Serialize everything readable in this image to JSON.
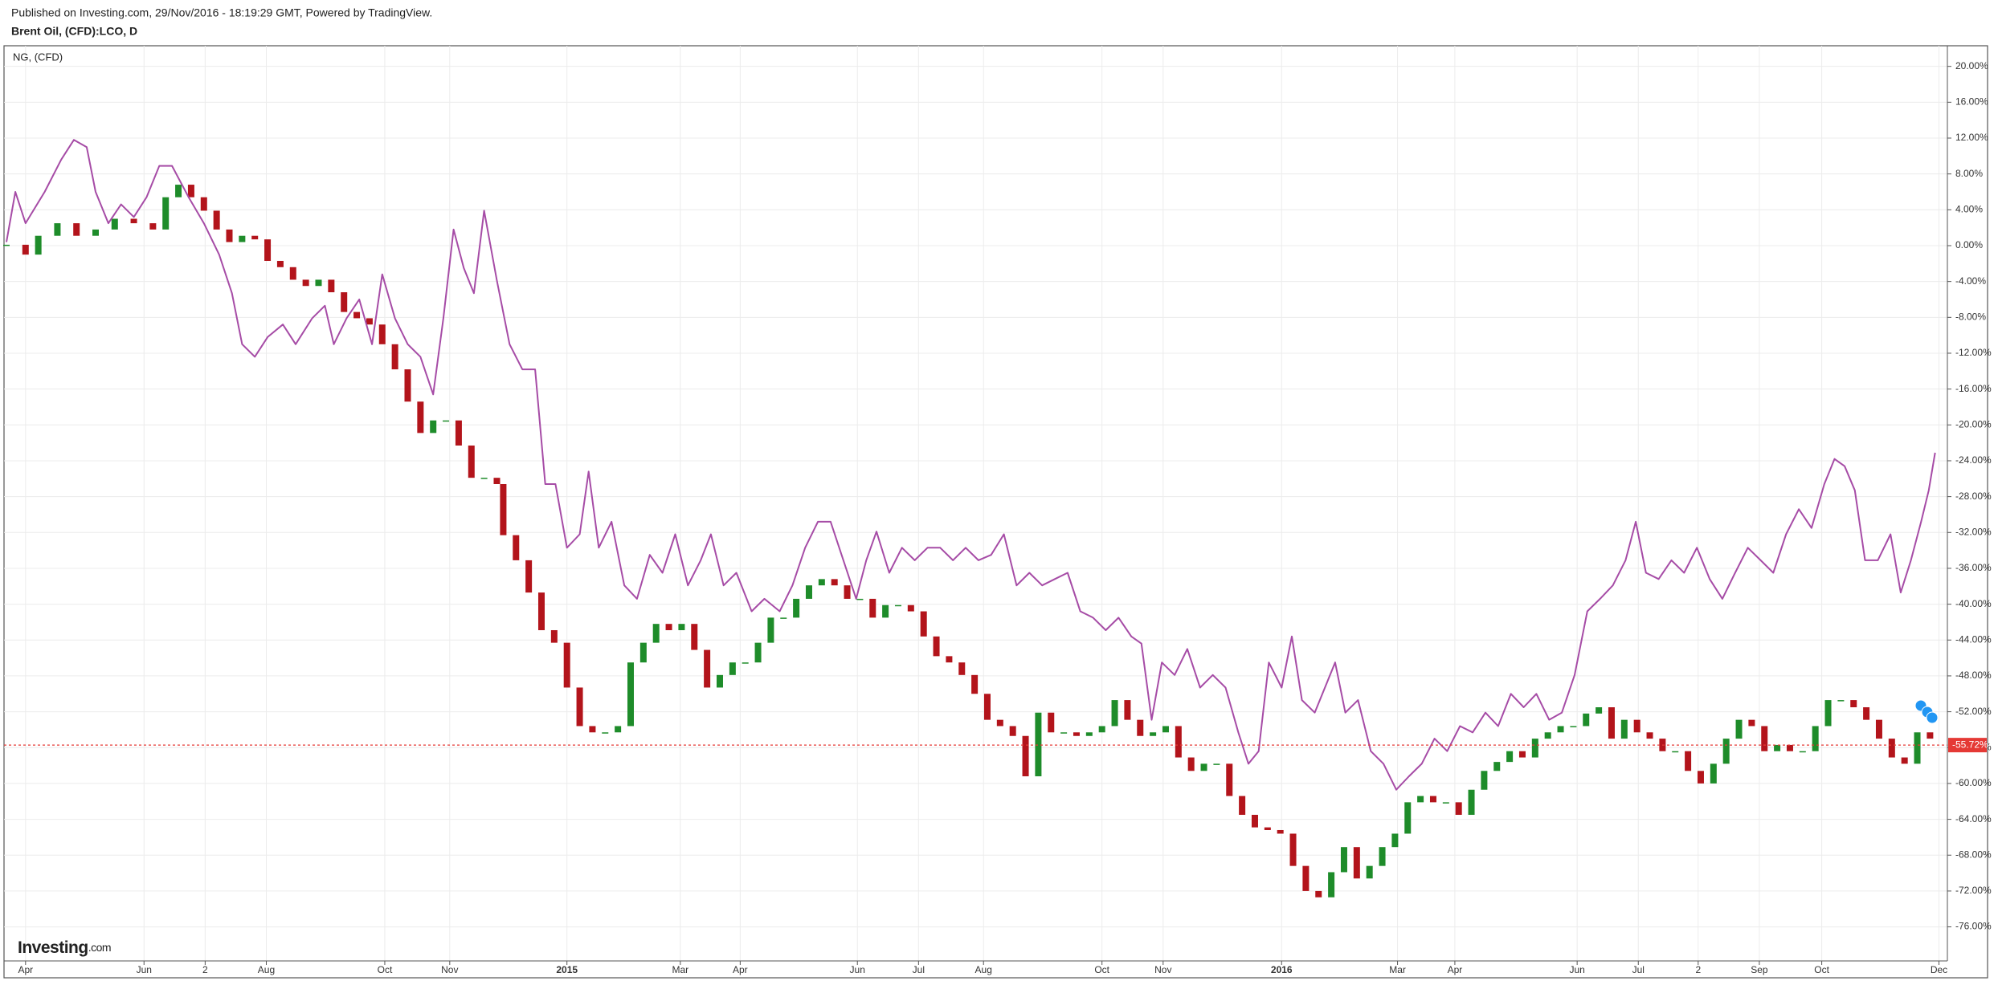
{
  "chart_data": {
    "type": "comparison",
    "header": "Published on Investing.com, 29/Nov/2016 - 18:19:29 GMT, Powered by TradingView.",
    "logo_name": "Investing",
    "logo_suffix": ".com",
    "grid": true,
    "xlim": [
      -1.5,
      150.8
    ],
    "ylim": [
      -79.8,
      22.3
    ],
    "xticks": [
      {
        "value": 0,
        "label": "Apr"
      },
      {
        "value": 9.3,
        "label": "Jun"
      },
      {
        "value": 14.1,
        "label": "2"
      },
      {
        "value": 18.9,
        "label": "Aug"
      },
      {
        "value": 28.2,
        "label": "Oct"
      },
      {
        "value": 33.3,
        "label": "Nov"
      },
      {
        "value": 42.5,
        "label": "2015"
      },
      {
        "value": 51.4,
        "label": "Mar"
      },
      {
        "value": 56.1,
        "label": "Apr"
      },
      {
        "value": 65.3,
        "label": "Jun"
      },
      {
        "value": 70.1,
        "label": "Jul"
      },
      {
        "value": 75.2,
        "label": "Aug"
      },
      {
        "value": 84.5,
        "label": "Oct"
      },
      {
        "value": 89.3,
        "label": "Nov"
      },
      {
        "value": 98.6,
        "label": "2016"
      },
      {
        "value": 107.7,
        "label": "Mar"
      },
      {
        "value": 112.2,
        "label": "Apr"
      },
      {
        "value": 121.8,
        "label": "Jun"
      },
      {
        "value": 126.6,
        "label": "Jul"
      },
      {
        "value": 131.3,
        "label": "2"
      },
      {
        "value": 136.1,
        "label": "Sep"
      },
      {
        "value": 141.0,
        "label": "Oct"
      },
      {
        "value": 150.2,
        "label": "Dec"
      }
    ],
    "yticks": [
      {
        "value": 20,
        "label": "20.00%"
      },
      {
        "value": 16,
        "label": "16.00%"
      },
      {
        "value": 12,
        "label": "12.00%"
      },
      {
        "value": 8,
        "label": "8.00%"
      },
      {
        "value": 4,
        "label": "4.00%"
      },
      {
        "value": 0,
        "label": "0.00%"
      },
      {
        "value": -4,
        "label": "-4.00%"
      },
      {
        "value": -8,
        "label": "-8.00%"
      },
      {
        "value": -12,
        "label": "-12.00%"
      },
      {
        "value": -16,
        "label": "-16.00%"
      },
      {
        "value": -20,
        "label": "-20.00%"
      },
      {
        "value": -24,
        "label": "-24.00%"
      },
      {
        "value": -28,
        "label": "-28.00%"
      },
      {
        "value": -32,
        "label": "-32.00%"
      },
      {
        "value": -36,
        "label": "-36.00%"
      },
      {
        "value": -40,
        "label": "-40.00%"
      },
      {
        "value": -44,
        "label": "-44.00%"
      },
      {
        "value": -48,
        "label": "-48.00%"
      },
      {
        "value": -52,
        "label": "-52.00%"
      },
      {
        "value": -56,
        "label": "-56.00%"
      },
      {
        "value": -60,
        "label": "-60.00%"
      },
      {
        "value": -64,
        "label": "-64.00%"
      },
      {
        "value": -68,
        "label": "-68.00%"
      },
      {
        "value": -72,
        "label": "-72.00%"
      },
      {
        "value": -76,
        "label": "-76.00%"
      }
    ],
    "last_value": {
      "value": -55.72,
      "label": "-55.72%",
      "color": "#e53935"
    },
    "series": [
      {
        "name": "Brent Oil, (CFD):LCO, D",
        "type": "candlestick",
        "up_color": "#1e8c2a",
        "down_color": "#b3141b",
        "x": [
          -1.5,
          0,
          1,
          2.5,
          4,
          5.5,
          7,
          8.5,
          10,
          11,
          12,
          13,
          14,
          15,
          16,
          17,
          18,
          19,
          20,
          21,
          22,
          23,
          24,
          25,
          26,
          27,
          28,
          29,
          30,
          31,
          32,
          33,
          34,
          35,
          36,
          37,
          37.5,
          38.5,
          39.5,
          40.5,
          41.5,
          42.5,
          43.5,
          44.5,
          45.5,
          46.5,
          47.5,
          48.5,
          49.5,
          50.5,
          51.5,
          52.5,
          53.5,
          54.5,
          55.5,
          56.5,
          57.5,
          58.5,
          59.5,
          60.5,
          61.5,
          62.5,
          63.5,
          64.5,
          65.5,
          66.5,
          67.5,
          68.5,
          69.5,
          70.5,
          71.5,
          72.5,
          73.5,
          74.5,
          75.5,
          76.5,
          77.5,
          78.5,
          79.5,
          80.5,
          81.5,
          82.5,
          83.5,
          84.5,
          85.5,
          86.5,
          87.5,
          88.5,
          89.5,
          90.5,
          91.5,
          92.5,
          93.5,
          94.5,
          95.5,
          96.5,
          97.5,
          98.5,
          99.5,
          100.5,
          101.5,
          102.5,
          103.5,
          104.5,
          105.5,
          106.5,
          107.5,
          108.5,
          109.5,
          110.5,
          111.5,
          112.5,
          113.5,
          114.5,
          115.5,
          116.5,
          117.5,
          118.5,
          119.5,
          120.5,
          121.5,
          122.5,
          123.5,
          124.5,
          125.5,
          126.5,
          127.5,
          128.5,
          129.5,
          130.5,
          131.5,
          132.5,
          133.5,
          134.5,
          135.5,
          136.5,
          137.5,
          138.5,
          139.5,
          140.5,
          141.5,
          142.5,
          143.5,
          144.5,
          145.5,
          146.5,
          147.5,
          148.5,
          149.5
        ],
        "open": [
          0,
          0.1,
          -1.0,
          1.1,
          2.5,
          1.1,
          1.8,
          3.0,
          2.5,
          1.8,
          5.4,
          6.8,
          5.4,
          3.9,
          1.8,
          0.4,
          1.1,
          0.7,
          -1.7,
          -2.4,
          -3.8,
          -4.5,
          -3.8,
          -5.2,
          -7.4,
          -8.1,
          -8.8,
          -11.0,
          -13.8,
          -17.4,
          -20.9,
          -19.5,
          -19.5,
          -22.3,
          -25.9,
          -25.9,
          -26.6,
          -32.3,
          -35.1,
          -38.7,
          -42.9,
          -44.3,
          -49.3,
          -53.6,
          -54.3,
          -54.3,
          -53.6,
          -46.5,
          -44.3,
          -42.2,
          -42.9,
          -42.2,
          -45.1,
          -49.3,
          -47.9,
          -46.5,
          -46.5,
          -44.3,
          -41.5,
          -41.5,
          -39.4,
          -37.9,
          -37.2,
          -37.9,
          -39.4,
          -39.4,
          -41.5,
          -40.1,
          -40.1,
          -40.8,
          -43.6,
          -45.8,
          -46.5,
          -47.9,
          -50.0,
          -52.9,
          -53.6,
          -54.7,
          -59.2,
          -52.1,
          -54.3,
          -54.3,
          -54.7,
          -54.3,
          -53.6,
          -50.7,
          -52.9,
          -54.7,
          -54.3,
          -53.6,
          -57.1,
          -58.6,
          -57.8,
          -57.8,
          -61.4,
          -63.5,
          -64.9,
          -65.2,
          -65.6,
          -69.2,
          -72.0,
          -72.7,
          -69.9,
          -67.1,
          -70.6,
          -69.2,
          -67.1,
          -65.6,
          -62.1,
          -61.4,
          -62.1,
          -62.1,
          -63.5,
          -60.7,
          -58.6,
          -57.6,
          -56.4,
          -57.1,
          -55.0,
          -54.3,
          -53.6,
          -53.6,
          -52.2,
          -51.5,
          -55.0,
          -52.9,
          -54.3,
          -55.0,
          -56.4,
          -56.4,
          -58.6,
          -60.0,
          -57.8,
          -55.0,
          -52.9,
          -53.6,
          -56.4,
          -55.7,
          -56.4,
          -56.4,
          -53.6,
          -50.7,
          -50.7,
          -51.5,
          -52.9,
          -55.0,
          -57.1,
          -57.8,
          -54.3
        ],
        "close": [
          0.1,
          -1.0,
          1.1,
          2.5,
          1.1,
          1.8,
          3.0,
          2.5,
          1.8,
          5.4,
          6.8,
          5.4,
          3.9,
          1.8,
          0.4,
          1.1,
          0.7,
          -1.7,
          -2.4,
          -3.8,
          -4.5,
          -3.8,
          -5.2,
          -7.4,
          -8.1,
          -8.8,
          -11.0,
          -13.8,
          -17.4,
          -20.9,
          -19.5,
          -19.5,
          -22.3,
          -25.9,
          -25.9,
          -26.6,
          -32.3,
          -35.1,
          -38.7,
          -42.9,
          -44.3,
          -49.3,
          -53.6,
          -54.3,
          -54.3,
          -53.6,
          -46.5,
          -44.3,
          -42.2,
          -42.9,
          -42.2,
          -45.1,
          -49.3,
          -47.9,
          -46.5,
          -46.5,
          -44.3,
          -41.5,
          -41.5,
          -39.4,
          -37.9,
          -37.2,
          -37.9,
          -39.4,
          -39.4,
          -41.5,
          -40.1,
          -40.1,
          -40.8,
          -43.6,
          -45.8,
          -46.5,
          -47.9,
          -50.0,
          -52.9,
          -53.6,
          -54.7,
          -59.2,
          -52.1,
          -54.3,
          -54.3,
          -54.7,
          -54.3,
          -53.6,
          -50.7,
          -52.9,
          -54.7,
          -54.3,
          -53.6,
          -57.1,
          -58.6,
          -57.8,
          -57.8,
          -61.4,
          -63.5,
          -64.9,
          -65.2,
          -65.6,
          -69.2,
          -72.0,
          -72.7,
          -69.9,
          -67.1,
          -70.6,
          -69.2,
          -67.1,
          -65.6,
          -62.1,
          -61.4,
          -62.1,
          -62.1,
          -63.5,
          -60.7,
          -58.6,
          -57.6,
          -56.4,
          -57.1,
          -55.0,
          -54.3,
          -53.6,
          -53.6,
          -52.2,
          -51.5,
          -55.0,
          -52.9,
          -54.3,
          -55.0,
          -56.4,
          -56.4,
          -58.6,
          -60.0,
          -57.8,
          -55.0,
          -52.9,
          -53.6,
          -56.4,
          -55.7,
          -56.4,
          -56.4,
          -53.6,
          -50.7,
          -50.7,
          -51.5,
          -52.9,
          -55.0,
          -57.1,
          -57.8,
          -54.3,
          -55.0
        ]
      },
      {
        "name": "NG,  (CFD)",
        "type": "line",
        "color": "#a64ca6",
        "x": [
          -1.5,
          -0.8,
          0,
          1.5,
          2.8,
          3.8,
          4.8,
          5.5,
          6.5,
          7.5,
          8.5,
          9.5,
          10.5,
          11.5,
          12.8,
          14,
          15.2,
          16.2,
          17,
          18,
          19,
          20.2,
          21.2,
          22.5,
          23.5,
          24.2,
          25.2,
          26.2,
          27.2,
          28,
          29,
          30,
          31,
          32,
          32.8,
          33.6,
          34.4,
          35.2,
          36,
          37,
          38,
          39,
          40,
          40.8,
          41.6,
          42.5,
          43.5,
          44.2,
          45,
          46,
          47,
          48,
          49,
          50,
          51,
          52,
          53,
          53.8,
          54.8,
          55.8,
          57,
          58,
          59.2,
          60.2,
          61.2,
          62.2,
          63.2,
          64.2,
          65.2,
          66,
          66.8,
          67.8,
          68.8,
          69.8,
          70.8,
          71.8,
          72.8,
          73.8,
          74.8,
          75.8,
          76.8,
          77.8,
          78.8,
          79.8,
          80.8,
          81.8,
          82.8,
          83.8,
          84.8,
          85.8,
          86.8,
          87.6,
          88.4,
          89.2,
          90.2,
          91.2,
          92.2,
          93.2,
          94.2,
          95.2,
          96,
          96.8,
          97.6,
          98.6,
          99.4,
          100.2,
          101.2,
          102,
          102.8,
          103.6,
          104.6,
          105.6,
          106.6,
          107.6,
          108.6,
          109.6,
          110.6,
          111.6,
          112.6,
          113.6,
          114.6,
          115.6,
          116.6,
          117.6,
          118.6,
          119.6,
          120.6,
          121.6,
          122.6,
          123.6,
          124.6,
          125.6,
          126.4,
          127.2,
          128.2,
          129.2,
          130.2,
          131.2,
          132.2,
          133.2,
          134.2,
          135.2,
          136.2,
          137.2,
          138.2,
          139.2,
          140.2,
          141.2,
          142,
          142.8,
          143.6,
          144.4,
          145.4,
          146.4,
          147.2,
          148,
          148.8,
          149.4,
          149.9
        ],
        "values": [
          0.4,
          6.0,
          2.5,
          6.0,
          9.6,
          11.8,
          11.0,
          6.0,
          2.5,
          4.6,
          3.2,
          5.4,
          8.9,
          8.9,
          5.4,
          2.5,
          -1.0,
          -5.3,
          -11.0,
          -12.4,
          -10.2,
          -8.8,
          -11.0,
          -8.1,
          -6.7,
          -11.0,
          -8.1,
          -6.0,
          -11.0,
          -3.2,
          -8.1,
          -11.0,
          -12.4,
          -16.6,
          -8.1,
          1.8,
          -2.5,
          -5.3,
          3.9,
          -3.9,
          -11.0,
          -13.8,
          -13.8,
          -26.6,
          -26.6,
          -33.7,
          -32.2,
          -25.2,
          -33.7,
          -30.8,
          -37.9,
          -39.4,
          -34.5,
          -36.5,
          -32.2,
          -37.9,
          -35.1,
          -32.2,
          -37.9,
          -36.5,
          -40.8,
          -39.4,
          -40.8,
          -37.9,
          -33.7,
          -30.8,
          -30.8,
          -35.1,
          -39.4,
          -35.1,
          -31.9,
          -36.5,
          -33.7,
          -35.1,
          -33.7,
          -33.7,
          -35.1,
          -33.7,
          -35.1,
          -34.5,
          -32.2,
          -37.9,
          -36.5,
          -37.9,
          -37.2,
          -36.5,
          -40.8,
          -41.5,
          -42.9,
          -41.5,
          -43.6,
          -44.4,
          -52.9,
          -46.5,
          -47.9,
          -45.0,
          -49.3,
          -47.9,
          -49.3,
          -54.3,
          -57.8,
          -56.4,
          -46.5,
          -49.3,
          -43.6,
          -50.7,
          -52.1,
          -49.3,
          -46.5,
          -52.1,
          -50.7,
          -56.4,
          -57.8,
          -60.7,
          -59.2,
          -57.8,
          -55.0,
          -56.4,
          -53.6,
          -54.3,
          -52.1,
          -53.6,
          -50.0,
          -51.5,
          -50.0,
          -52.9,
          -52.1,
          -47.9,
          -40.8,
          -39.4,
          -37.9,
          -35.1,
          -30.8,
          -36.5,
          -37.2,
          -35.1,
          -36.5,
          -33.7,
          -37.2,
          -39.4,
          -36.5,
          -33.7,
          -35.1,
          -36.5,
          -32.2,
          -29.4,
          -31.5,
          -26.6,
          -23.8,
          -24.6,
          -27.3,
          -35.1,
          -35.1,
          -32.2,
          -38.7,
          -35.1,
          -30.8,
          -27.3,
          -23.1
        ]
      }
    ]
  }
}
